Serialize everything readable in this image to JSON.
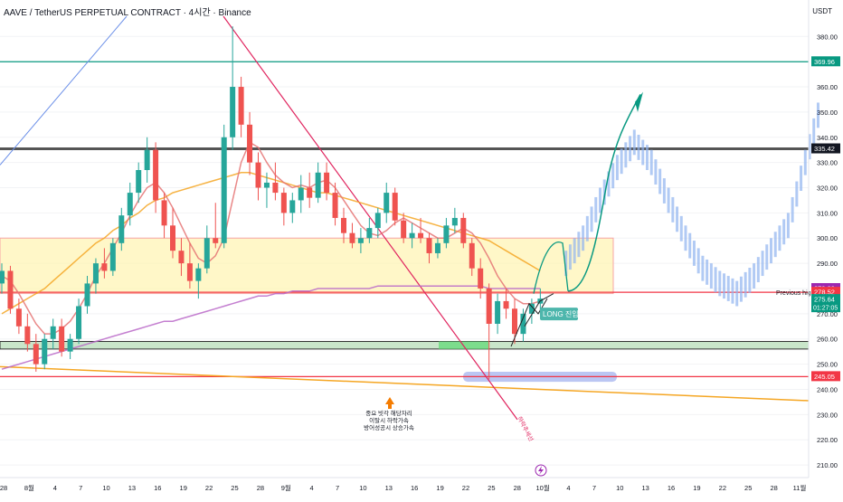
{
  "title": "AAVE / TetherUS PERPETUAL CONTRACT · 4시간 · Binance",
  "currency": "USDT",
  "colors": {
    "up": "#26a69a",
    "down": "#ef5350",
    "ma_orange": "#f5a623",
    "ma_pink": "#e57373",
    "ma_purple": "#ba68c8",
    "teal_line": "#089981",
    "zone_fill": "#fff3b0",
    "green_zone": "#a5d6a7",
    "projection": "#90b4f0"
  },
  "chart_data": {
    "type": "candlestick",
    "title": "AAVE / TetherUS PERPETUAL CONTRACT · 4시간 · Binance",
    "ylim": [
      205,
      388
    ],
    "y_ticks": [
      210,
      220,
      230,
      240,
      250,
      260,
      270,
      280,
      290,
      300,
      310,
      320,
      330,
      340,
      350,
      360,
      370,
      380
    ],
    "x_tick_labels": [
      "28",
      "8월",
      "4",
      "7",
      "10",
      "13",
      "16",
      "19",
      "22",
      "25",
      "28",
      "9월",
      "4",
      "7",
      "10",
      "13",
      "16",
      "19",
      "22",
      "25",
      "28",
      "10월",
      "4",
      "7",
      "10",
      "13",
      "16",
      "19",
      "22",
      "25",
      "28",
      "11월"
    ],
    "price_labels": [
      {
        "value": 369.96,
        "text": "369.96",
        "color": "#089981"
      },
      {
        "value": 335.42,
        "text": "335.42",
        "color": "#131722"
      },
      {
        "value": 279.99,
        "text": "279.99",
        "color": "#9c27b0"
      },
      {
        "value": 278.52,
        "text": "278.52",
        "color": "#f23645"
      },
      {
        "value": 275.64,
        "text": "275.64",
        "color": "#089981",
        "sub": "01:27:05"
      },
      {
        "value": 245.05,
        "text": "245.05",
        "color": "#f23645"
      }
    ],
    "horizontal_levels": [
      {
        "value": 369.96,
        "color": "#089981",
        "name": "resistance-high"
      },
      {
        "value": 335.42,
        "color": "#555555",
        "name": "resistance-mid"
      },
      {
        "value": 278.52,
        "color": "#f23645",
        "name": "previous-high"
      },
      {
        "value": 245.05,
        "color": "#f23645",
        "name": "support-low"
      }
    ],
    "zones": [
      {
        "name": "yellow-resistance-zone",
        "y": [
          278,
          300
        ]
      },
      {
        "name": "green-support-zone",
        "y": [
          256,
          259
        ]
      }
    ],
    "annotations": {
      "previous_high": "Previous high",
      "long_entry": "LONG 진입",
      "note_line1": "중요 빗각 해당자리",
      "note_line2": "이탈시 하락가속",
      "note_line3": "방어성공시 상승가속",
      "diag_label": "하락추세선"
    },
    "candles": [
      {
        "o": 282,
        "h": 290,
        "l": 278,
        "c": 287
      },
      {
        "o": 287,
        "h": 289,
        "l": 270,
        "c": 272
      },
      {
        "o": 272,
        "h": 276,
        "l": 262,
        "c": 265
      },
      {
        "o": 265,
        "h": 270,
        "l": 255,
        "c": 258
      },
      {
        "o": 258,
        "h": 262,
        "l": 247,
        "c": 250
      },
      {
        "o": 250,
        "h": 262,
        "l": 248,
        "c": 260
      },
      {
        "o": 260,
        "h": 268,
        "l": 256,
        "c": 265
      },
      {
        "o": 265,
        "h": 268,
        "l": 253,
        "c": 255
      },
      {
        "o": 255,
        "h": 262,
        "l": 252,
        "c": 260
      },
      {
        "o": 260,
        "h": 276,
        "l": 258,
        "c": 273
      },
      {
        "o": 273,
        "h": 285,
        "l": 270,
        "c": 282
      },
      {
        "o": 282,
        "h": 292,
        "l": 278,
        "c": 290
      },
      {
        "o": 290,
        "h": 296,
        "l": 284,
        "c": 287
      },
      {
        "o": 287,
        "h": 300,
        "l": 285,
        "c": 298
      },
      {
        "o": 298,
        "h": 312,
        "l": 295,
        "c": 309
      },
      {
        "o": 309,
        "h": 322,
        "l": 305,
        "c": 318
      },
      {
        "o": 318,
        "h": 330,
        "l": 314,
        "c": 327
      },
      {
        "o": 327,
        "h": 340,
        "l": 322,
        "c": 335
      },
      {
        "o": 335,
        "h": 338,
        "l": 310,
        "c": 315
      },
      {
        "o": 315,
        "h": 318,
        "l": 300,
        "c": 305
      },
      {
        "o": 305,
        "h": 312,
        "l": 292,
        "c": 295
      },
      {
        "o": 295,
        "h": 300,
        "l": 285,
        "c": 290
      },
      {
        "o": 290,
        "h": 298,
        "l": 280,
        "c": 283
      },
      {
        "o": 283,
        "h": 290,
        "l": 276,
        "c": 288
      },
      {
        "o": 288,
        "h": 305,
        "l": 286,
        "c": 300
      },
      {
        "o": 300,
        "h": 314,
        "l": 296,
        "c": 298
      },
      {
        "o": 298,
        "h": 345,
        "l": 296,
        "c": 340
      },
      {
        "o": 340,
        "h": 384,
        "l": 335,
        "c": 360
      },
      {
        "o": 360,
        "h": 364,
        "l": 340,
        "c": 345
      },
      {
        "o": 345,
        "h": 350,
        "l": 325,
        "c": 330
      },
      {
        "o": 330,
        "h": 334,
        "l": 315,
        "c": 320
      },
      {
        "o": 320,
        "h": 326,
        "l": 312,
        "c": 322
      },
      {
        "o": 322,
        "h": 330,
        "l": 315,
        "c": 318
      },
      {
        "o": 318,
        "h": 320,
        "l": 305,
        "c": 310
      },
      {
        "o": 310,
        "h": 318,
        "l": 306,
        "c": 315
      },
      {
        "o": 315,
        "h": 325,
        "l": 310,
        "c": 320
      },
      {
        "o": 320,
        "h": 326,
        "l": 312,
        "c": 316
      },
      {
        "o": 316,
        "h": 330,
        "l": 314,
        "c": 326
      },
      {
        "o": 326,
        "h": 330,
        "l": 315,
        "c": 318
      },
      {
        "o": 318,
        "h": 322,
        "l": 305,
        "c": 308
      },
      {
        "o": 308,
        "h": 312,
        "l": 298,
        "c": 302
      },
      {
        "o": 302,
        "h": 306,
        "l": 296,
        "c": 298
      },
      {
        "o": 298,
        "h": 304,
        "l": 294,
        "c": 300
      },
      {
        "o": 300,
        "h": 308,
        "l": 298,
        "c": 304
      },
      {
        "o": 304,
        "h": 312,
        "l": 300,
        "c": 310
      },
      {
        "o": 310,
        "h": 322,
        "l": 306,
        "c": 318
      },
      {
        "o": 318,
        "h": 320,
        "l": 305,
        "c": 307
      },
      {
        "o": 307,
        "h": 310,
        "l": 298,
        "c": 300
      },
      {
        "o": 300,
        "h": 306,
        "l": 296,
        "c": 302
      },
      {
        "o": 302,
        "h": 308,
        "l": 298,
        "c": 300
      },
      {
        "o": 300,
        "h": 302,
        "l": 290,
        "c": 294
      },
      {
        "o": 294,
        "h": 300,
        "l": 292,
        "c": 298
      },
      {
        "o": 298,
        "h": 308,
        "l": 296,
        "c": 305
      },
      {
        "o": 305,
        "h": 312,
        "l": 302,
        "c": 308
      },
      {
        "o": 308,
        "h": 310,
        "l": 296,
        "c": 298
      },
      {
        "o": 298,
        "h": 300,
        "l": 285,
        "c": 288
      },
      {
        "o": 288,
        "h": 292,
        "l": 276,
        "c": 280
      },
      {
        "o": 280,
        "h": 282,
        "l": 244,
        "c": 266
      },
      {
        "o": 266,
        "h": 278,
        "l": 262,
        "c": 275
      },
      {
        "o": 275,
        "h": 280,
        "l": 268,
        "c": 272
      },
      {
        "o": 272,
        "h": 276,
        "l": 258,
        "c": 262
      },
      {
        "o": 262,
        "h": 272,
        "l": 259,
        "c": 270
      },
      {
        "o": 270,
        "h": 276,
        "l": 266,
        "c": 274
      },
      {
        "o": 274,
        "h": 280,
        "l": 270,
        "c": 276
      }
    ],
    "ma_orange": [
      270,
      272,
      274,
      276,
      278,
      280,
      283,
      286,
      289,
      292,
      295,
      298,
      300,
      303,
      305,
      308,
      310,
      313,
      315,
      316,
      318,
      319,
      320,
      321,
      322,
      323,
      324,
      325,
      326,
      326,
      325,
      324,
      323,
      322,
      321,
      320,
      319,
      318,
      318,
      317,
      316,
      315,
      314,
      313,
      312,
      311,
      310,
      309,
      308,
      307,
      306,
      305,
      304,
      303,
      302,
      301,
      300,
      299,
      297,
      295,
      293,
      291,
      289,
      287
    ],
    "ma_pink": [
      285,
      283,
      278,
      272,
      266,
      262,
      262,
      264,
      267,
      272,
      278,
      285,
      290,
      296,
      302,
      309,
      315,
      320,
      322,
      318,
      312,
      305,
      298,
      292,
      290,
      293,
      300,
      315,
      330,
      338,
      336,
      330,
      325,
      322,
      320,
      321,
      320,
      322,
      323,
      320,
      315,
      310,
      305,
      302,
      301,
      303,
      306,
      308,
      306,
      304,
      302,
      300,
      300,
      302,
      304,
      302,
      298,
      292,
      285,
      280,
      276,
      274,
      274,
      275
    ],
    "ma_purple": [
      248,
      249,
      250,
      251,
      252,
      253,
      254,
      255,
      256,
      257,
      258,
      259,
      260,
      261,
      262,
      263,
      264,
      265,
      266,
      267,
      267,
      268,
      269,
      270,
      271,
      272,
      273,
      274,
      275,
      276,
      277,
      277,
      278,
      278,
      279,
      279,
      279,
      280,
      280,
      280,
      280,
      280,
      280,
      280,
      281,
      281,
      281,
      281,
      281,
      281,
      281,
      281,
      281,
      281,
      281,
      281,
      281,
      280,
      280,
      280,
      280,
      280,
      280,
      280
    ],
    "projection": [
      {
        "t": 66,
        "v": 290
      },
      {
        "t": 68,
        "v": 300
      },
      {
        "t": 70,
        "v": 315
      },
      {
        "t": 72,
        "v": 328
      },
      {
        "t": 74,
        "v": 338
      },
      {
        "t": 76,
        "v": 330
      },
      {
        "t": 78,
        "v": 315
      },
      {
        "t": 80,
        "v": 300
      },
      {
        "t": 82,
        "v": 288
      },
      {
        "t": 84,
        "v": 282
      },
      {
        "t": 86,
        "v": 278
      },
      {
        "t": 88,
        "v": 285
      },
      {
        "t": 90,
        "v": 295
      },
      {
        "t": 92,
        "v": 305
      },
      {
        "t": 94,
        "v": 330
      },
      {
        "t": 96,
        "v": 355
      }
    ]
  }
}
